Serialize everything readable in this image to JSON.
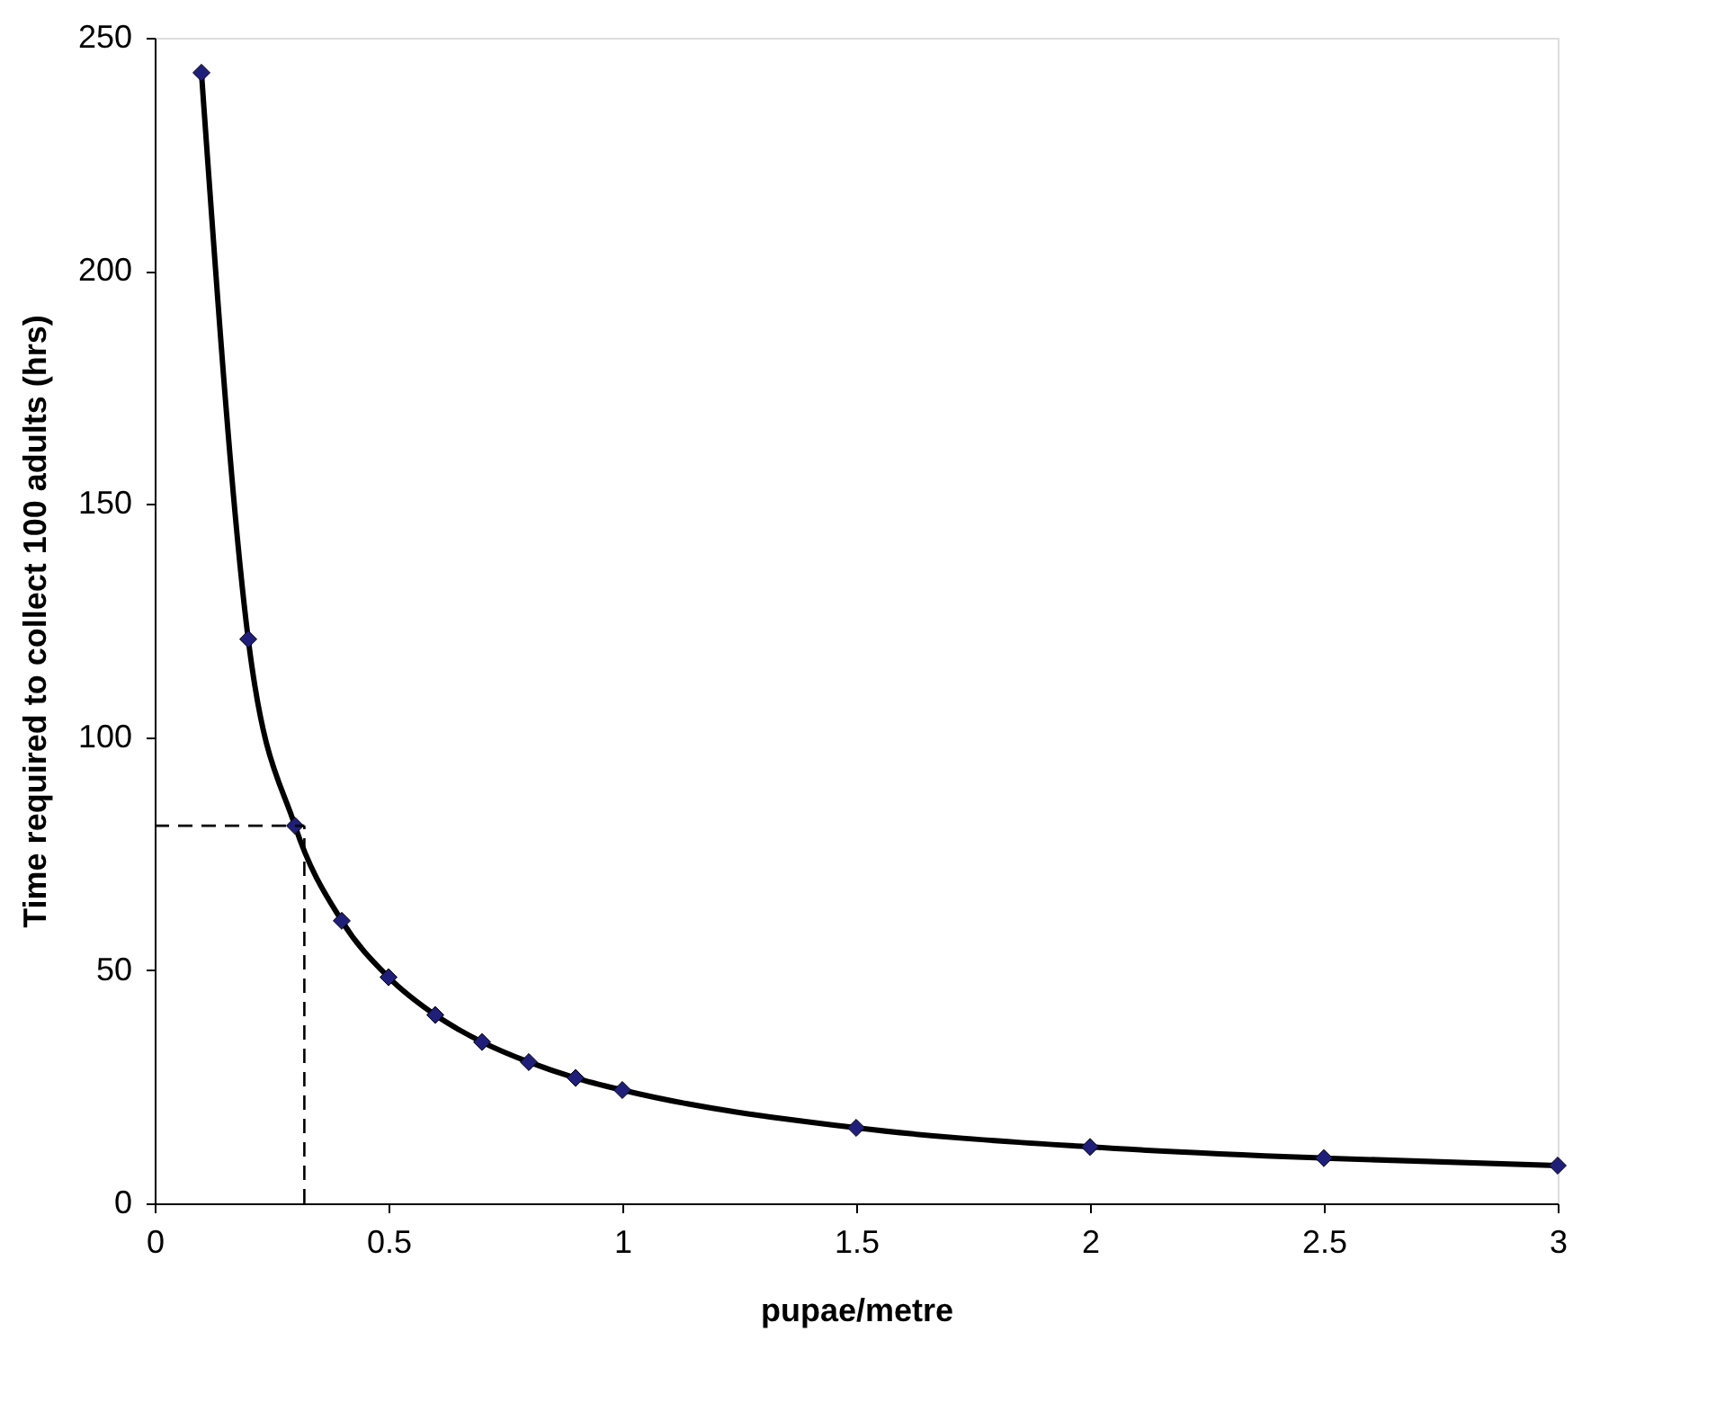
{
  "chart_data": {
    "type": "line",
    "xlabel": "pupae/metre",
    "ylabel": "Time required to collect 100 adults (hrs)",
    "x": [
      0.1,
      0.2,
      0.3,
      0.4,
      0.5,
      0.6,
      0.7,
      0.8,
      0.9,
      1.0,
      1.5,
      2.0,
      2.5,
      3.0
    ],
    "series": [
      {
        "color": "#000000",
        "marker": "none",
        "line_style": "solid",
        "values": [
          242.5,
          121,
          81,
          60.6,
          48.5,
          40.4,
          34.6,
          30.3,
          26.9,
          24.3,
          16.2,
          12.1,
          9.7,
          8.1
        ]
      },
      {
        "type": "scatter",
        "color": "#1f1f7a",
        "marker": "diamond",
        "values": [
          242.5,
          121,
          81,
          60.6,
          48.5,
          40.4,
          34.6,
          30.3,
          26.9,
          24.3,
          16.2,
          12.1,
          9.7,
          8.1
        ]
      }
    ],
    "xlim": [
      0,
      3
    ],
    "xticks": [
      0,
      0.5,
      1,
      1.5,
      2,
      2.5,
      3
    ],
    "ylim": [
      0,
      250
    ],
    "yticks": [
      0,
      50,
      100,
      150,
      200,
      250
    ],
    "grid": false,
    "ref_lines": [
      {
        "axis": "x",
        "value": 0.32,
        "line_style": "dashed",
        "color": "#000000"
      },
      {
        "axis": "y",
        "value": 81,
        "line_style": "dashed",
        "color": "#000000"
      }
    ]
  }
}
